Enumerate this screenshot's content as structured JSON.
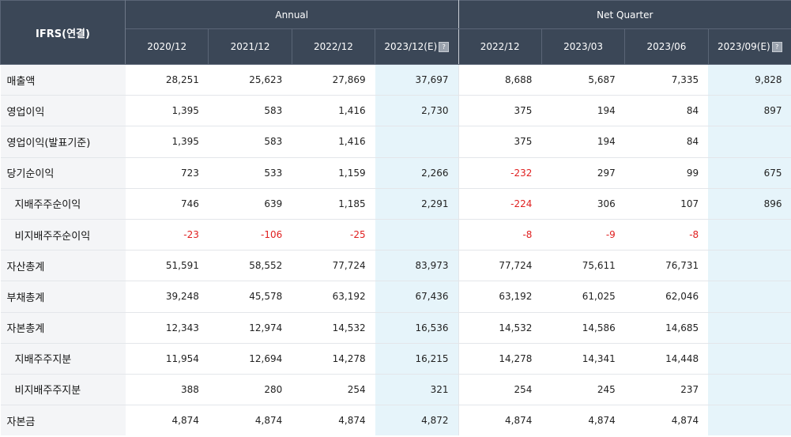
{
  "header": {
    "corner": "IFRS(연결)",
    "groups": {
      "annual": "Annual",
      "quarter": "Net Quarter"
    },
    "periods": [
      "2020/12",
      "2021/12",
      "2022/12",
      "2023/12(E)",
      "2022/12",
      "2023/03",
      "2023/06",
      "2023/09(E)"
    ]
  },
  "rows": [
    {
      "label": "매출액",
      "values": [
        "28,251",
        "25,623",
        "27,869",
        "37,697",
        "8,688",
        "5,687",
        "7,335",
        "9,828"
      ]
    },
    {
      "label": "영업이익",
      "values": [
        "1,395",
        "583",
        "1,416",
        "2,730",
        "375",
        "194",
        "84",
        "897"
      ]
    },
    {
      "label": "영업이익(발표기준)",
      "values": [
        "1,395",
        "583",
        "1,416",
        "",
        "375",
        "194",
        "84",
        ""
      ]
    },
    {
      "label": "당기순이익",
      "values": [
        "723",
        "533",
        "1,159",
        "2,266",
        "-232",
        "297",
        "99",
        "675"
      ]
    },
    {
      "label": "지배주주순이익",
      "values": [
        "746",
        "639",
        "1,185",
        "2,291",
        "-224",
        "306",
        "107",
        "896"
      ]
    },
    {
      "label": "비지배주주순이익",
      "values": [
        "-23",
        "-106",
        "-25",
        "",
        "-8",
        "-9",
        "-8",
        ""
      ]
    },
    {
      "label": "자산총계",
      "values": [
        "51,591",
        "58,552",
        "77,724",
        "83,973",
        "77,724",
        "75,611",
        "76,731",
        ""
      ]
    },
    {
      "label": "부채총계",
      "values": [
        "39,248",
        "45,578",
        "63,192",
        "67,436",
        "63,192",
        "61,025",
        "62,046",
        ""
      ]
    },
    {
      "label": "자본총계",
      "values": [
        "12,343",
        "12,974",
        "14,532",
        "16,536",
        "14,532",
        "14,586",
        "14,685",
        ""
      ]
    },
    {
      "label": "지배주주지분",
      "values": [
        "11,954",
        "12,694",
        "14,278",
        "16,215",
        "14,278",
        "14,341",
        "14,448",
        ""
      ]
    },
    {
      "label": "비지배주주지분",
      "values": [
        "388",
        "280",
        "254",
        "321",
        "254",
        "245",
        "237",
        ""
      ]
    },
    {
      "label": "자본금",
      "values": [
        "4,874",
        "4,874",
        "4,874",
        "4,872",
        "4,874",
        "4,874",
        "4,874",
        ""
      ]
    }
  ],
  "colors": {
    "header_bg": "#3b4757",
    "estimate_bg": "#e6f4fa",
    "label_bg": "#f4f5f7",
    "negative": "#e02020"
  }
}
